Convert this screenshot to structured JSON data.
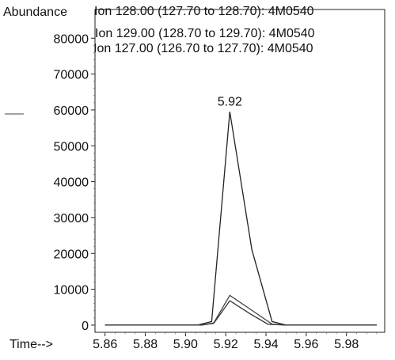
{
  "chart_data": {
    "type": "line",
    "ylabel": "Abundance",
    "xlabel": "Time-->",
    "xlim": [
      5.855,
      5.999
    ],
    "ylim": [
      -2000,
      88000
    ],
    "xticks": [
      5.86,
      5.88,
      5.9,
      5.92,
      5.94,
      5.96,
      5.98
    ],
    "yticks": [
      0,
      10000,
      20000,
      30000,
      40000,
      50000,
      60000,
      70000,
      80000
    ],
    "legend_position": "top",
    "legend": [
      "Ion 128.00 (127.70 to 128.70): 4M0540",
      "Ion 129.00 (128.70 to 129.70): 4M0540",
      "Ion 127.00 (126.70 to 127.70): 4M0540"
    ],
    "annotations": [
      {
        "text": "5.92",
        "x": 5.922,
        "y": 59000
      }
    ],
    "series": [
      {
        "name": "Ion 128.00 (127.70 to 128.70): 4M0540",
        "points": [
          [
            5.86,
            0
          ],
          [
            5.906,
            0
          ],
          [
            5.913,
            1000
          ],
          [
            5.922,
            59500
          ],
          [
            5.933,
            21000
          ],
          [
            5.943,
            1000
          ],
          [
            5.95,
            0
          ],
          [
            5.995,
            0
          ]
        ]
      },
      {
        "name": "Ion 129.00 (128.70 to 129.70): 4M0540",
        "points": [
          [
            5.86,
            0
          ],
          [
            5.908,
            0
          ],
          [
            5.914,
            600
          ],
          [
            5.922,
            8300
          ],
          [
            5.932,
            4500
          ],
          [
            5.943,
            300
          ],
          [
            5.95,
            0
          ],
          [
            5.995,
            0
          ]
        ]
      },
      {
        "name": "Ion 127.00 (126.70 to 127.70): 4M0540",
        "points": [
          [
            5.86,
            0
          ],
          [
            5.908,
            0
          ],
          [
            5.914,
            500
          ],
          [
            5.922,
            6800
          ],
          [
            5.932,
            3200
          ],
          [
            5.941,
            250
          ],
          [
            5.95,
            0
          ],
          [
            5.995,
            0
          ]
        ]
      }
    ]
  }
}
